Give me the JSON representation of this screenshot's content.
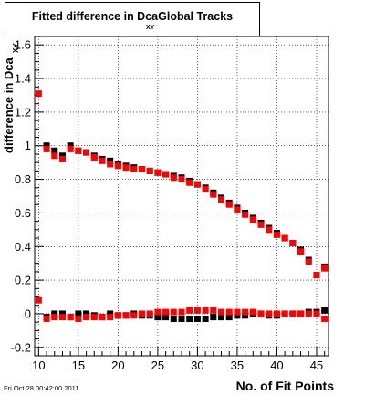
{
  "title": {
    "main": "Fitted difference in Dca",
    "subscript": "XY",
    "suffix": "Global Tracks"
  },
  "footer_text": "Fri Oct 28 00:42:00 2011",
  "chart_data": {
    "type": "scatter",
    "title": "Fitted difference in Dca XY Global Tracks",
    "xlabel": "No. of Fit Points",
    "ylabel": "difference in Dca",
    "ylabel_subscript": "XY",
    "xlim": [
      9.5,
      46.5
    ],
    "ylim": [
      -0.25,
      1.65
    ],
    "x_ticks": [
      10,
      15,
      20,
      25,
      30,
      35,
      40,
      45
    ],
    "y_ticks": [
      -0.2,
      0,
      0.2,
      0.4,
      0.6,
      0.8,
      1,
      1.2,
      1.4,
      1.6
    ],
    "y_tick_labels": [
      "-0.2",
      "0",
      "0.2",
      "0.4",
      "0.6",
      "0.8",
      "1",
      "1.2",
      "1.4",
      "1.6"
    ],
    "grid": true,
    "legend": "none",
    "series": [
      {
        "color": "#000000",
        "x": [
          11,
          12,
          13,
          14,
          15,
          16,
          17,
          18,
          19,
          20,
          21,
          22,
          23,
          24,
          25,
          26,
          27,
          28,
          29,
          30,
          31,
          32,
          33,
          34,
          35,
          36,
          37,
          38,
          39,
          40,
          41,
          42,
          43,
          44,
          45,
          46
        ],
        "y": [
          1.0,
          0.97,
          0.94,
          1.0,
          0.97,
          0.96,
          0.94,
          0.92,
          0.91,
          0.89,
          0.88,
          0.87,
          0.86,
          0.85,
          0.84,
          0.83,
          0.82,
          0.81,
          0.79,
          0.77,
          0.75,
          0.72,
          0.69,
          0.66,
          0.63,
          0.6,
          0.57,
          0.54,
          0.51,
          0.48,
          0.45,
          0.42,
          0.38,
          0.32,
          0.23,
          0.28
        ]
      },
      {
        "color": "#ff0000",
        "x": [
          10,
          11,
          12,
          13,
          14,
          15,
          16,
          17,
          18,
          19,
          20,
          21,
          22,
          23,
          24,
          25,
          26,
          27,
          28,
          29,
          30,
          31,
          32,
          33,
          34,
          35,
          36,
          37,
          38,
          39,
          40,
          41,
          42,
          43,
          44,
          45,
          46
        ],
        "y": [
          1.31,
          0.98,
          0.94,
          0.92,
          0.98,
          0.97,
          0.96,
          0.93,
          0.91,
          0.89,
          0.88,
          0.87,
          0.86,
          0.86,
          0.85,
          0.84,
          0.83,
          0.81,
          0.8,
          0.78,
          0.77,
          0.74,
          0.71,
          0.68,
          0.65,
          0.62,
          0.59,
          0.56,
          0.53,
          0.5,
          0.47,
          0.45,
          0.42,
          0.37,
          0.31,
          0.23,
          0.27
        ]
      },
      {
        "color": "#000000",
        "x": [
          11,
          12,
          13,
          14,
          15,
          16,
          17,
          18,
          19,
          20,
          21,
          22,
          23,
          24,
          25,
          26,
          27,
          28,
          29,
          30,
          31,
          32,
          33,
          34,
          35,
          36,
          37,
          38,
          39,
          40,
          41,
          42,
          43,
          44,
          45,
          46
        ],
        "y": [
          -0.02,
          0.0,
          0.0,
          -0.02,
          0.0,
          0.0,
          -0.01,
          -0.02,
          0.0,
          -0.01,
          -0.01,
          0.0,
          -0.01,
          -0.01,
          -0.02,
          -0.02,
          -0.03,
          -0.03,
          -0.03,
          -0.03,
          -0.03,
          -0.02,
          -0.02,
          -0.02,
          -0.01,
          -0.01,
          0.0,
          0.0,
          -0.01,
          -0.01,
          0.0,
          0.0,
          0.0,
          0.01,
          0.01,
          0.02
        ]
      },
      {
        "color": "#ff0000",
        "x": [
          10,
          11,
          12,
          13,
          14,
          15,
          16,
          17,
          18,
          19,
          20,
          21,
          22,
          23,
          24,
          25,
          26,
          27,
          28,
          29,
          30,
          31,
          32,
          33,
          34,
          35,
          36,
          37,
          38,
          39,
          40,
          41,
          42,
          43,
          44,
          45,
          46
        ],
        "y": [
          0.08,
          -0.03,
          -0.02,
          -0.02,
          -0.02,
          -0.03,
          -0.02,
          -0.02,
          -0.02,
          -0.02,
          -0.01,
          -0.01,
          -0.01,
          0.0,
          0.0,
          0.01,
          0.01,
          0.01,
          0.01,
          0.02,
          0.02,
          0.02,
          0.02,
          0.01,
          0.01,
          0.01,
          0.01,
          0.01,
          0.0,
          0.0,
          0.0,
          0.0,
          0.0,
          0.0,
          0.0,
          0.0,
          -0.03
        ]
      }
    ]
  }
}
